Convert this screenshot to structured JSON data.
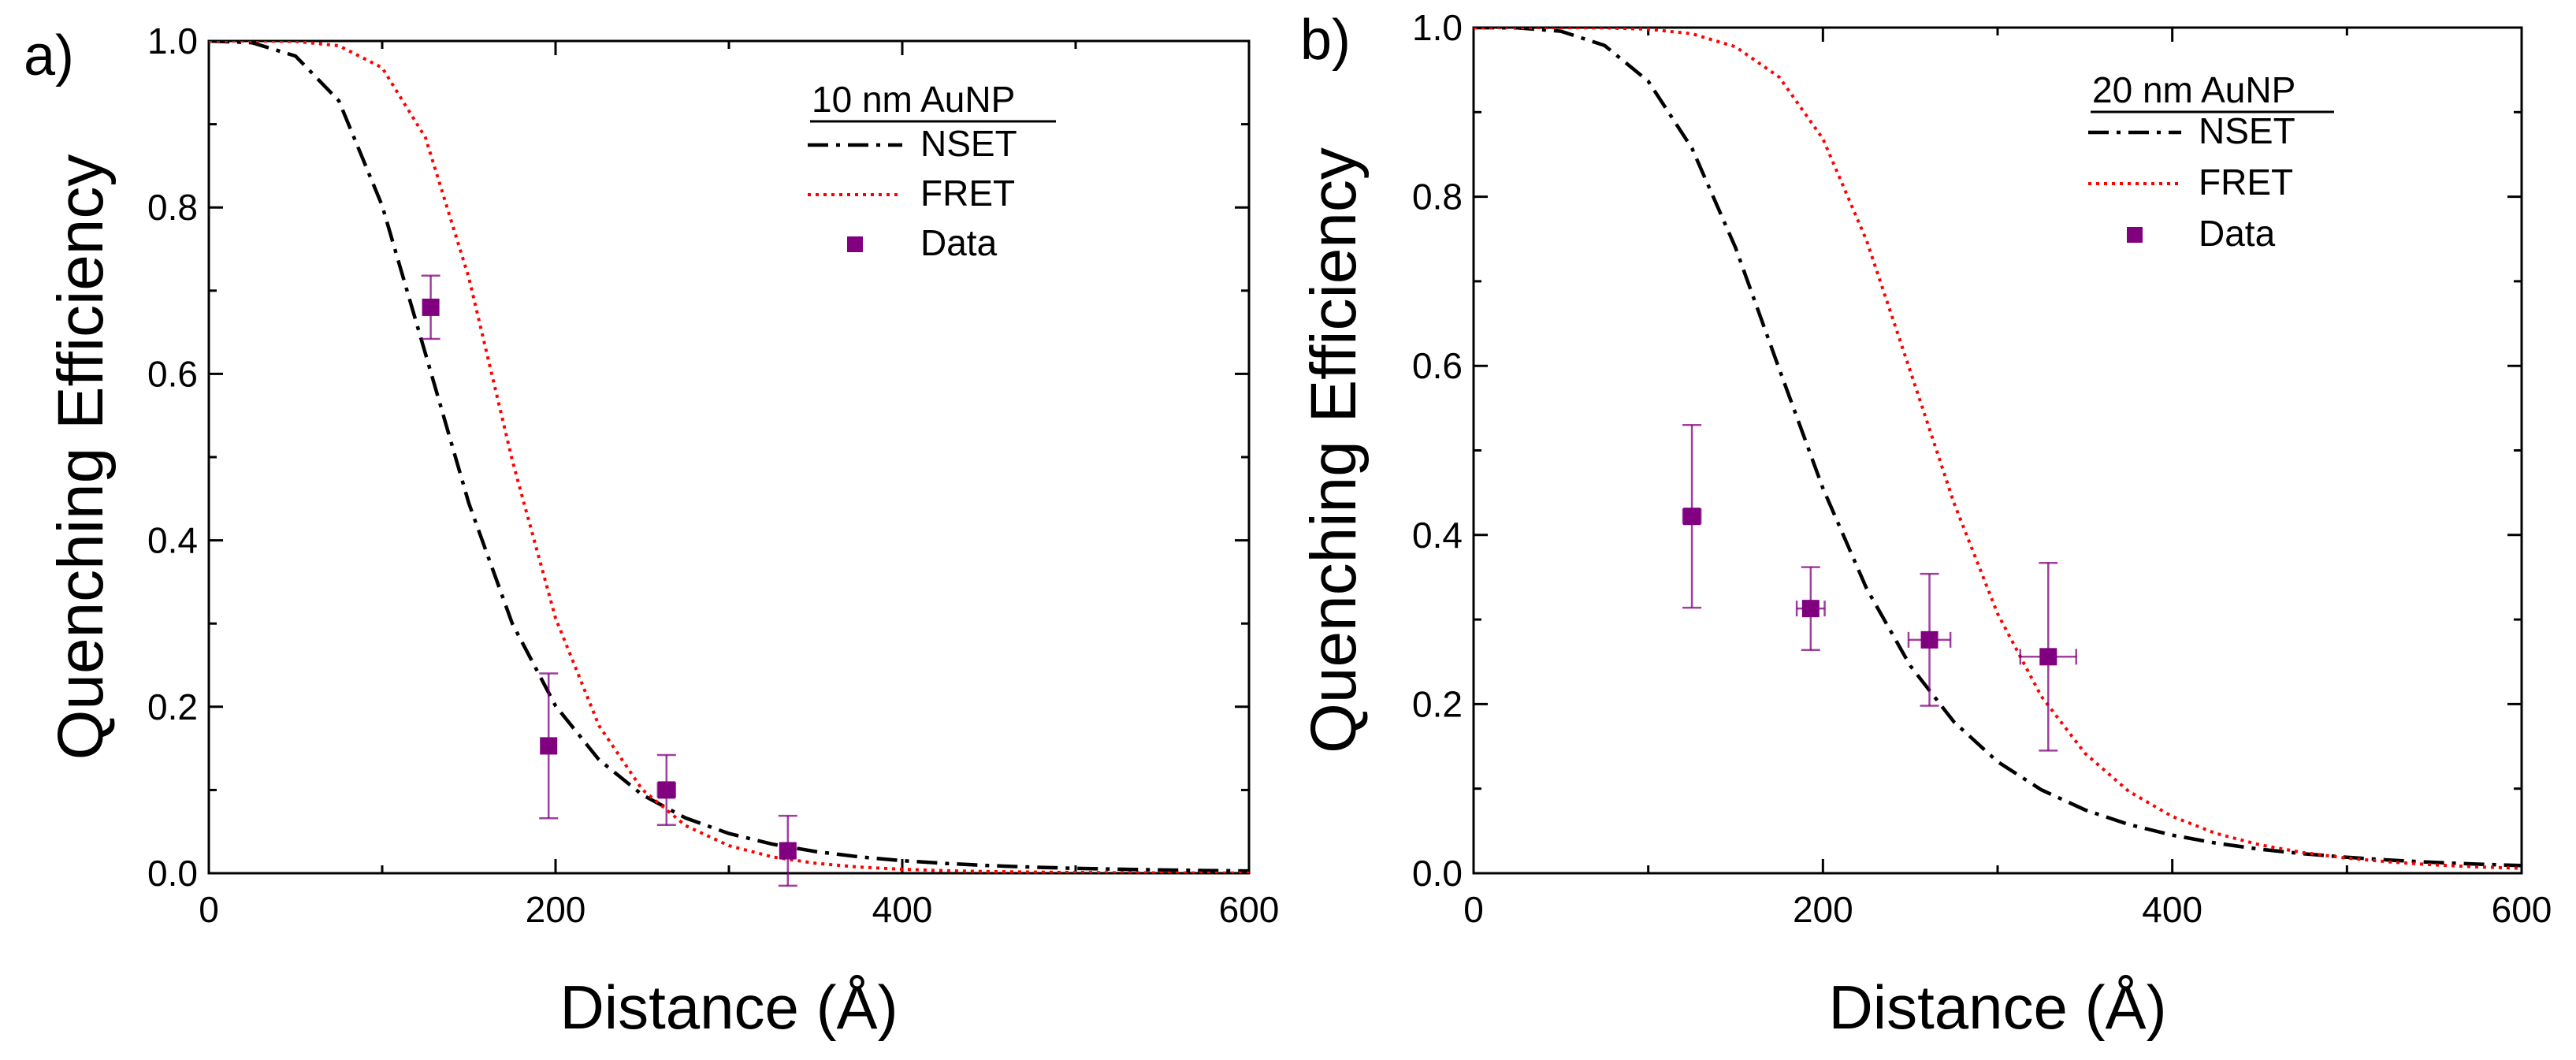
{
  "chart_data": [
    {
      "type": "line",
      "panel_label": "a)",
      "xlabel": "Distance (Å)",
      "ylabel": "Quenching Efficiency",
      "xlim": [
        0,
        600
      ],
      "ylim": [
        0,
        1.0
      ],
      "x_ticks": [
        0,
        200,
        400,
        600
      ],
      "y_ticks": [
        0.0,
        0.2,
        0.4,
        0.6,
        0.8,
        1.0
      ],
      "x_tick_labels": [
        "0",
        "200",
        "400",
        "600"
      ],
      "y_tick_labels": [
        "0.0",
        "0.2",
        "0.4",
        "0.6",
        "0.8",
        "1.0"
      ],
      "legend": {
        "title": "10 nm AuNP",
        "position": "top-right",
        "entries": [
          "NSET",
          "FRET",
          "Data"
        ]
      },
      "series": [
        {
          "name": "NSET",
          "kind": "line",
          "style": "dash-dot",
          "color": "#000000",
          "x": [
            0,
            25,
            50,
            75,
            100,
            125,
            150,
            175,
            200,
            225,
            250,
            275,
            300,
            325,
            350,
            375,
            400,
            425,
            450,
            475,
            500,
            525,
            550,
            575,
            600
          ],
          "y": [
            1.0,
            0.9979,
            0.9819,
            0.9281,
            0.8021,
            0.624,
            0.4444,
            0.3002,
            0.2011,
            0.1365,
            0.0942,
            0.0664,
            0.0477,
            0.0349,
            0.026,
            0.0197,
            0.0151,
            0.0117,
            0.0092,
            0.0073,
            0.0059,
            0.0048,
            0.0039,
            0.0032,
            0.0027
          ]
        },
        {
          "name": "FRET",
          "kind": "line",
          "style": "dotted",
          "color": "#ff0000",
          "x": [
            0,
            25,
            50,
            75,
            100,
            125,
            150,
            175,
            200,
            225,
            250,
            275,
            300,
            325,
            350,
            375,
            400,
            425,
            450,
            475,
            500,
            525,
            550,
            575,
            600
          ],
          "y": [
            1.0,
            1.0,
            0.9995,
            0.9943,
            0.9679,
            0.8837,
            0.7154,
            0.4965,
            0.3065,
            0.1776,
            0.1006,
            0.0572,
            0.0331,
            0.0196,
            0.0119,
            0.0074,
            0.0047,
            0.003,
            0.002,
            0.0013,
            0.0009,
            0.0006,
            0.0004,
            0.0003,
            0.0002
          ]
        },
        {
          "name": "Data",
          "kind": "scatter",
          "marker": "square",
          "color": "#800080",
          "x": [
            128,
            196,
            264,
            334
          ],
          "y": [
            0.68,
            0.153,
            0.1,
            0.027
          ],
          "y_err": [
            0.038,
            0.087,
            0.042,
            0.042
          ],
          "x_err": [
            0,
            0,
            5,
            0
          ]
        }
      ]
    },
    {
      "type": "line",
      "panel_label": "b)",
      "xlabel": "Distance (Å)",
      "ylabel": "Quenching Efficiency",
      "xlim": [
        0,
        600
      ],
      "ylim": [
        0,
        1.0
      ],
      "x_ticks": [
        0,
        200,
        400,
        600
      ],
      "y_ticks": [
        0.0,
        0.2,
        0.4,
        0.6,
        0.8,
        1.0
      ],
      "x_tick_labels": [
        "0",
        "200",
        "400",
        "600"
      ],
      "y_tick_labels": [
        "0.0",
        "0.2",
        "0.4",
        "0.6",
        "0.8",
        "1.0"
      ],
      "legend": {
        "title": "20 nm AuNP",
        "position": "top-right",
        "entries": [
          "NSET",
          "FRET",
          "Data"
        ]
      },
      "series": [
        {
          "name": "NSET",
          "kind": "line",
          "style": "dash-dot",
          "color": "#000000",
          "x": [
            0,
            25,
            50,
            75,
            100,
            125,
            150,
            175,
            200,
            225,
            250,
            275,
            300,
            325,
            350,
            375,
            400,
            425,
            450,
            475,
            500,
            525,
            550,
            575,
            600
          ],
          "y": [
            1.0,
            0.9997,
            0.9957,
            0.9788,
            0.9365,
            0.8574,
            0.7395,
            0.5963,
            0.4553,
            0.3365,
            0.2453,
            0.1789,
            0.1319,
            0.0987,
            0.0749,
            0.0577,
            0.045,
            0.0356,
            0.0284,
            0.023,
            0.0188,
            0.0155,
            0.0128,
            0.0107,
            0.009
          ]
        },
        {
          "name": "FRET",
          "kind": "line",
          "style": "dotted",
          "color": "#ff0000",
          "x": [
            0,
            25,
            50,
            75,
            100,
            125,
            150,
            175,
            200,
            225,
            250,
            275,
            300,
            325,
            350,
            375,
            400,
            425,
            450,
            475,
            500,
            525,
            550,
            575,
            600
          ],
          "y": [
            1.0,
            1.0,
            1.0,
            0.9997,
            0.9981,
            0.9927,
            0.9773,
            0.9414,
            0.8685,
            0.7481,
            0.5938,
            0.4379,
            0.3069,
            0.2093,
            0.1419,
            0.0969,
            0.0671,
            0.0471,
            0.0336,
            0.0243,
            0.0178,
            0.0132,
            0.0099,
            0.0075,
            0.0058
          ]
        },
        {
          "name": "Data",
          "kind": "scatter",
          "marker": "square",
          "color": "#800080",
          "x": [
            125,
            193,
            261,
            329
          ],
          "y": [
            0.422,
            0.313,
            0.276,
            0.256
          ],
          "y_err": [
            0.108,
            0.049,
            0.078,
            0.111
          ],
          "x_err": [
            5,
            8,
            12,
            16
          ]
        }
      ]
    }
  ]
}
